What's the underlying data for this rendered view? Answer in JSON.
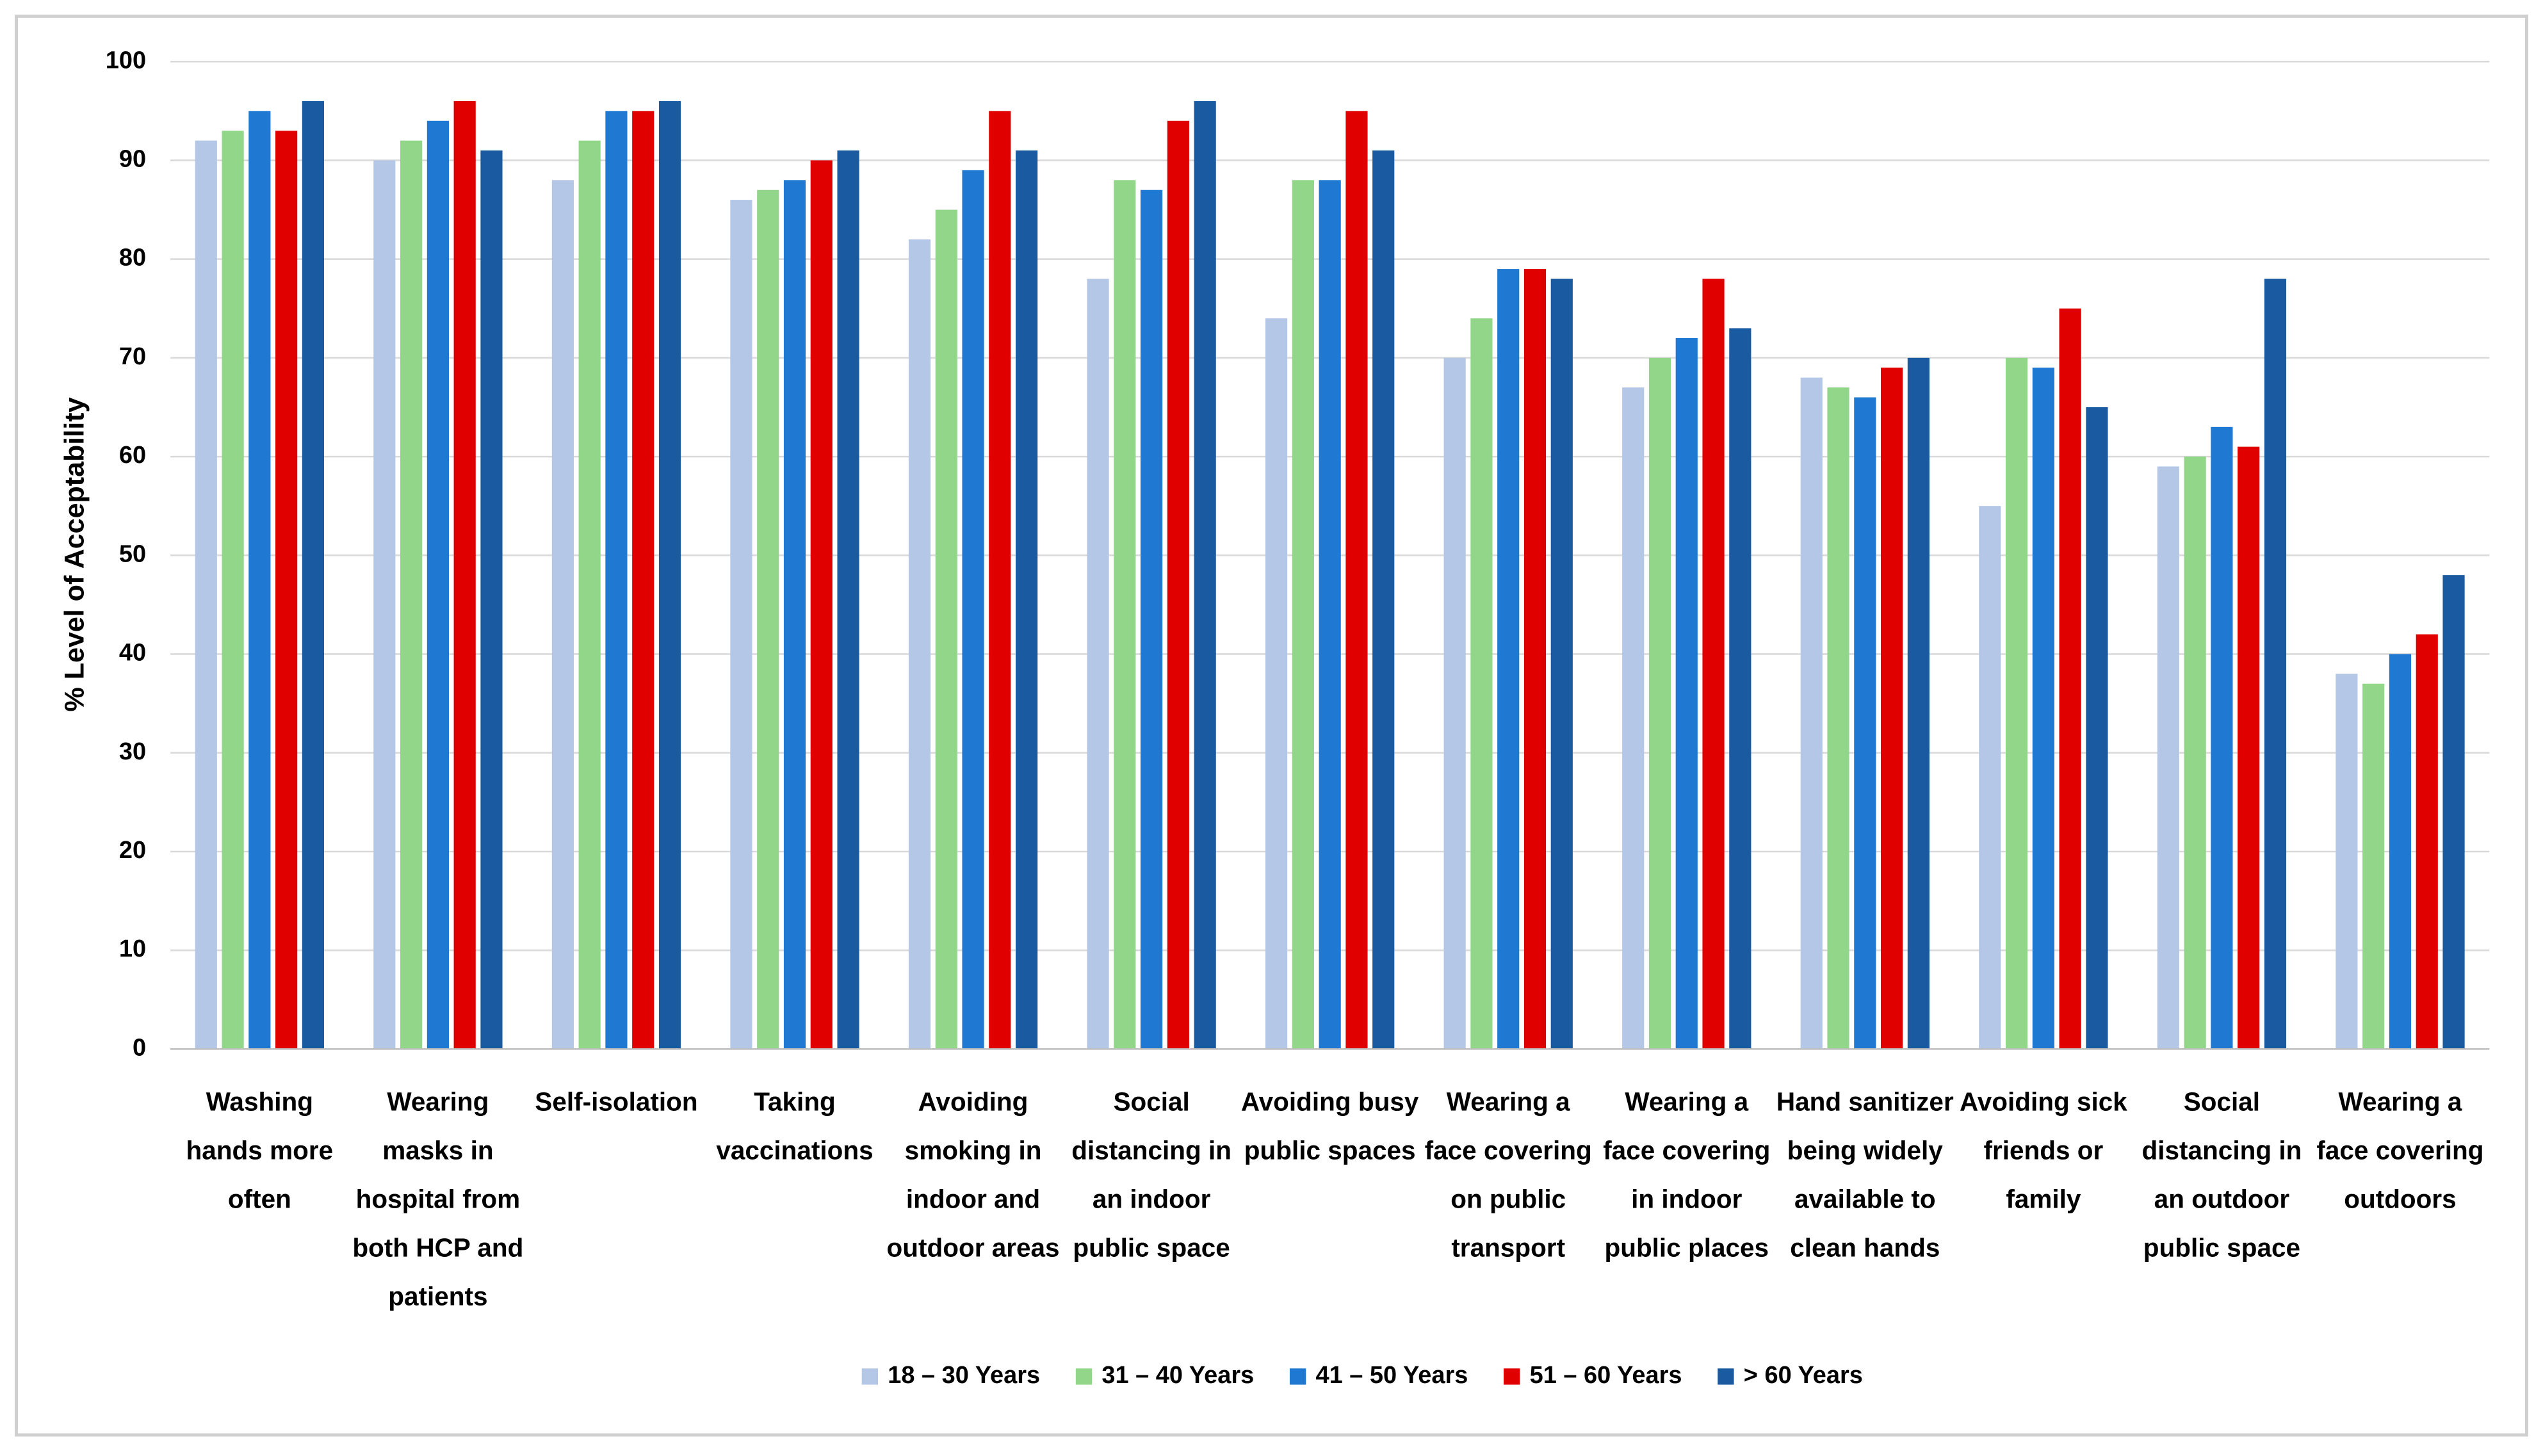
{
  "chart_data": {
    "type": "bar",
    "y_label": "% Level of Acceptability",
    "categories": [
      "Washing hands more often",
      "Wearing masks in hospital from both HCP and patients",
      "Self-isolation",
      "Taking vaccinations",
      "Avoiding smoking in indoor and outdoor areas",
      "Social distancing in an indoor public space",
      "Avoiding busy public spaces",
      "Wearing a face covering on public transport",
      "Wearing a face covering in indoor public places",
      "Hand sanitizer being widely available to clean hands",
      "Avoiding sick friends or family",
      "Social distancing in an outdoor public space",
      "Wearing a face covering outdoors"
    ],
    "series": [
      {
        "name": "18 – 30 Years",
        "color": "#b4c7e7",
        "values": [
          92,
          90,
          88,
          86,
          82,
          78,
          74,
          70,
          67,
          68,
          55,
          59,
          38
        ]
      },
      {
        "name": "31 – 40 Years",
        "color": "#92d68a",
        "values": [
          93,
          92,
          92,
          87,
          85,
          88,
          88,
          74,
          70,
          67,
          70,
          60,
          37
        ]
      },
      {
        "name": "41 – 50 Years",
        "color": "#1f78d1",
        "values": [
          95,
          94,
          95,
          88,
          89,
          87,
          88,
          79,
          72,
          66,
          69,
          63,
          40
        ]
      },
      {
        "name": "51 – 60 Years",
        "color": "#e00000",
        "values": [
          93,
          96,
          95,
          90,
          95,
          94,
          95,
          79,
          78,
          69,
          75,
          61,
          42
        ]
      },
      {
        "name": "> 60 Years",
        "color": "#1a5aa0",
        "values": [
          96,
          91,
          96,
          91,
          91,
          96,
          91,
          78,
          73,
          70,
          65,
          78,
          48
        ]
      }
    ],
    "ylim": [
      0,
      100
    ],
    "yticks": [
      0,
      10,
      20,
      30,
      40,
      50,
      60,
      70,
      80,
      90,
      100
    ],
    "grid": true,
    "legend": "bottom"
  }
}
